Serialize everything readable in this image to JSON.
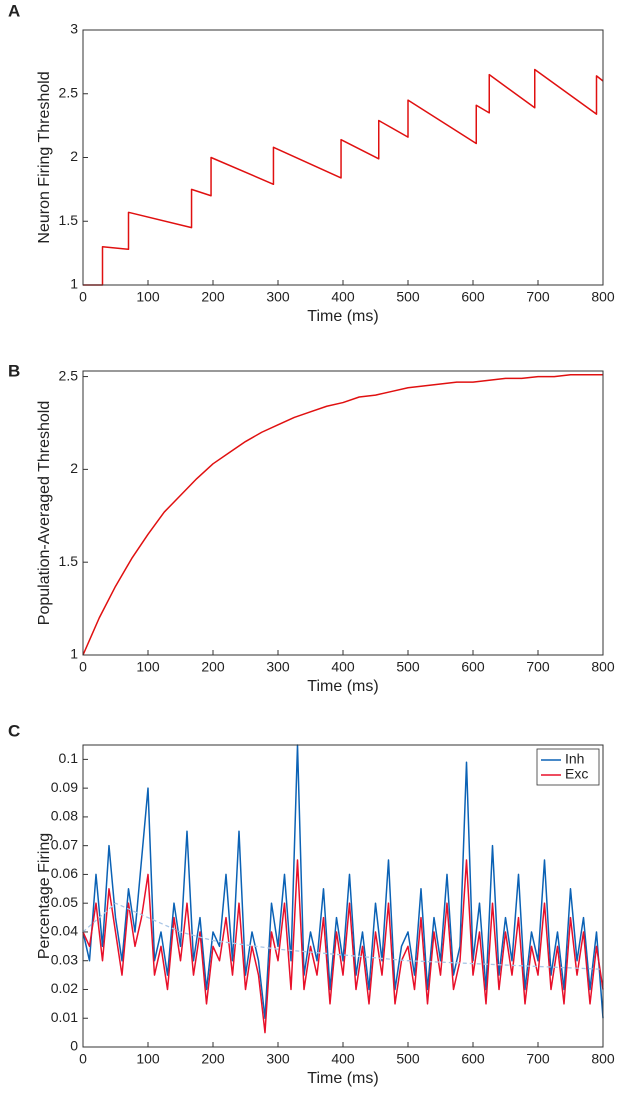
{
  "chart_data": [
    {
      "type": "line",
      "panel_label": "A",
      "xlabel": "Time (ms)",
      "ylabel": "Neuron Firing Threshold",
      "x": [
        0,
        30,
        30,
        70,
        70,
        167,
        167,
        197,
        197,
        293,
        293,
        397,
        397,
        455,
        455,
        500,
        500,
        605,
        605,
        625,
        625,
        695,
        695,
        790,
        790,
        800
      ],
      "series": [
        {
          "color": "#e01010",
          "values": [
            1,
            1,
            1.3,
            1.28,
            1.57,
            1.45,
            1.75,
            1.7,
            2.0,
            1.79,
            2.08,
            1.84,
            2.14,
            1.99,
            2.29,
            2.16,
            2.45,
            2.11,
            2.41,
            2.35,
            2.65,
            2.39,
            2.69,
            2.34,
            2.64,
            2.6
          ]
        }
      ],
      "xlim": [
        0,
        800
      ],
      "ylim": [
        1,
        3
      ],
      "xticks": [
        0,
        100,
        200,
        300,
        400,
        500,
        600,
        700,
        800
      ],
      "yticks": [
        1,
        1.5,
        2,
        2.5,
        3
      ]
    },
    {
      "type": "line",
      "panel_label": "B",
      "xlabel": "Time (ms)",
      "ylabel": "Population-Averaged Threshold",
      "x": [
        0,
        25,
        50,
        75,
        100,
        125,
        150,
        175,
        200,
        225,
        250,
        275,
        300,
        325,
        350,
        375,
        400,
        425,
        450,
        475,
        500,
        525,
        550,
        575,
        600,
        625,
        650,
        675,
        700,
        725,
        750,
        775,
        800
      ],
      "series": [
        {
          "color": "#e01010",
          "values": [
            1.0,
            1.2,
            1.37,
            1.52,
            1.65,
            1.77,
            1.86,
            1.95,
            2.03,
            2.09,
            2.15,
            2.2,
            2.24,
            2.28,
            2.31,
            2.34,
            2.36,
            2.39,
            2.4,
            2.42,
            2.44,
            2.45,
            2.46,
            2.47,
            2.47,
            2.48,
            2.49,
            2.49,
            2.5,
            2.5,
            2.51,
            2.51,
            2.51
          ]
        }
      ],
      "xlim": [
        0,
        800
      ],
      "ylim": [
        1,
        2.53
      ],
      "xticks": [
        0,
        100,
        200,
        300,
        400,
        500,
        600,
        700,
        800
      ],
      "yticks": [
        1,
        1.5,
        2,
        2.5
      ]
    },
    {
      "type": "line",
      "panel_label": "C",
      "xlabel": "Time (ms)",
      "ylabel": "Percentage Firing",
      "legend": "northeast",
      "x": [
        0,
        10,
        20,
        30,
        40,
        50,
        60,
        70,
        80,
        90,
        100,
        110,
        120,
        130,
        140,
        150,
        160,
        170,
        180,
        190,
        200,
        210,
        220,
        230,
        240,
        250,
        260,
        270,
        280,
        290,
        300,
        310,
        320,
        330,
        340,
        350,
        360,
        370,
        380,
        390,
        400,
        410,
        420,
        430,
        440,
        450,
        460,
        470,
        480,
        490,
        500,
        510,
        520,
        530,
        540,
        550,
        560,
        570,
        580,
        590,
        600,
        610,
        620,
        630,
        640,
        650,
        660,
        670,
        680,
        690,
        700,
        710,
        720,
        730,
        740,
        750,
        760,
        770,
        780,
        790,
        800
      ],
      "series": [
        {
          "name": "Inh",
          "color": "#0b62b5",
          "values": [
            0.04,
            0.03,
            0.06,
            0.035,
            0.07,
            0.045,
            0.03,
            0.055,
            0.04,
            0.065,
            0.09,
            0.03,
            0.04,
            0.025,
            0.05,
            0.035,
            0.075,
            0.03,
            0.045,
            0.02,
            0.04,
            0.035,
            0.06,
            0.03,
            0.075,
            0.025,
            0.04,
            0.03,
            0.01,
            0.05,
            0.035,
            0.06,
            0.03,
            0.105,
            0.025,
            0.04,
            0.03,
            0.055,
            0.02,
            0.045,
            0.03,
            0.06,
            0.025,
            0.04,
            0.02,
            0.05,
            0.03,
            0.065,
            0.02,
            0.035,
            0.04,
            0.025,
            0.055,
            0.02,
            0.045,
            0.03,
            0.06,
            0.025,
            0.035,
            0.099,
            0.03,
            0.05,
            0.02,
            0.07,
            0.025,
            0.045,
            0.03,
            0.06,
            0.02,
            0.04,
            0.03,
            0.065,
            0.025,
            0.04,
            0.02,
            0.055,
            0.03,
            0.045,
            0.02,
            0.04,
            0.01
          ]
        },
        {
          "name": "Exc",
          "color": "#e8102a",
          "values": [
            0.04,
            0.035,
            0.05,
            0.03,
            0.055,
            0.04,
            0.025,
            0.05,
            0.035,
            0.045,
            0.06,
            0.025,
            0.035,
            0.02,
            0.045,
            0.03,
            0.05,
            0.025,
            0.04,
            0.015,
            0.035,
            0.03,
            0.045,
            0.025,
            0.05,
            0.02,
            0.035,
            0.025,
            0.005,
            0.04,
            0.03,
            0.05,
            0.02,
            0.065,
            0.02,
            0.035,
            0.025,
            0.045,
            0.015,
            0.04,
            0.025,
            0.05,
            0.02,
            0.035,
            0.015,
            0.04,
            0.025,
            0.05,
            0.015,
            0.03,
            0.035,
            0.02,
            0.045,
            0.015,
            0.04,
            0.025,
            0.05,
            0.02,
            0.03,
            0.065,
            0.025,
            0.04,
            0.015,
            0.05,
            0.02,
            0.04,
            0.025,
            0.045,
            0.015,
            0.035,
            0.025,
            0.05,
            0.02,
            0.035,
            0.015,
            0.045,
            0.025,
            0.04,
            0.015,
            0.035,
            0.02
          ]
        },
        {
          "color": "#a9c6e6",
          "dashed": true,
          "x": [
            0,
            50,
            100,
            150,
            200,
            300,
            400,
            500,
            600,
            700,
            800
          ],
          "values": [
            0.04,
            0.05,
            0.045,
            0.04,
            0.037,
            0.034,
            0.032,
            0.03,
            0.029,
            0.028,
            0.027
          ]
        }
      ],
      "xlim": [
        0,
        800
      ],
      "ylim": [
        0,
        0.105
      ],
      "xticks": [
        0,
        100,
        200,
        300,
        400,
        500,
        600,
        700,
        800
      ],
      "yticks": [
        0,
        0.01,
        0.02,
        0.03,
        0.04,
        0.05,
        0.06,
        0.07,
        0.08,
        0.09,
        0.1
      ]
    }
  ]
}
